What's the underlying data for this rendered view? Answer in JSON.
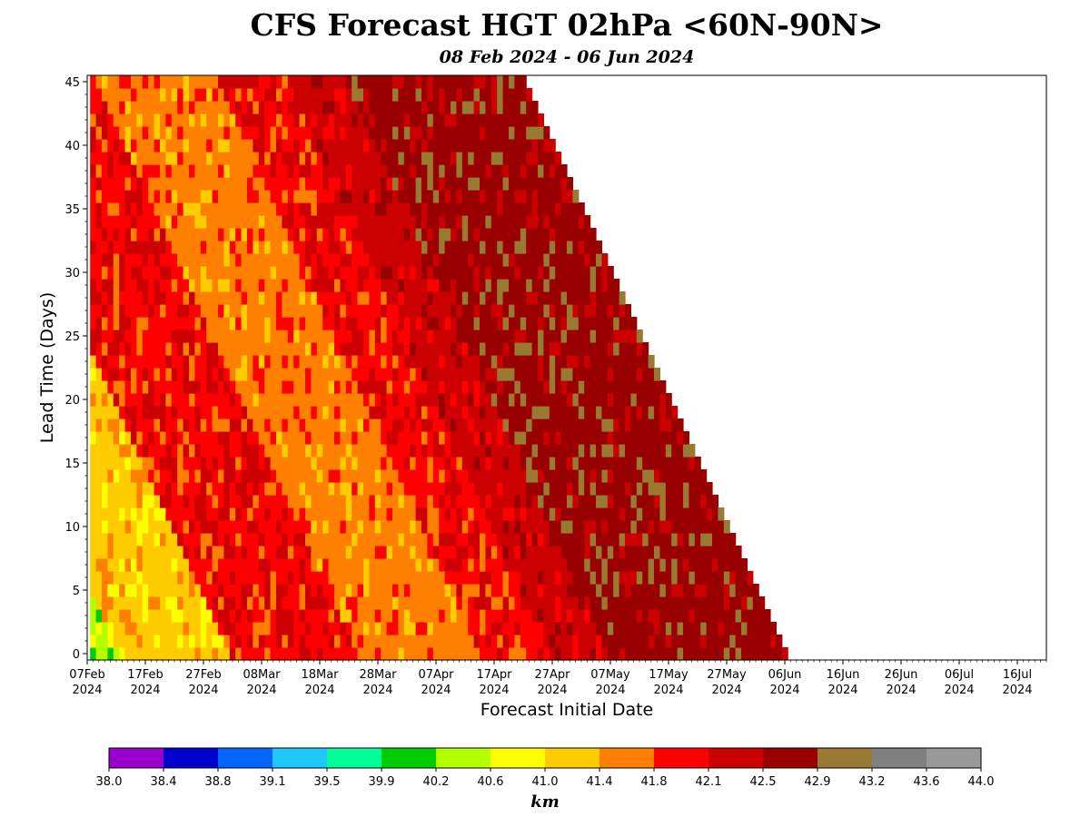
{
  "title": "CFS Forecast HGT 02hPa <60N-90N>",
  "subtitle": "08 Feb 2024 - 06 Jun 2024",
  "chart_data": {
    "type": "heatmap",
    "xlabel": "Forecast Initial Date",
    "ylabel": "Lead Time (Days)",
    "x_ticks": [
      {
        "date": "2024-02-07",
        "line1": "07Feb",
        "line2": "2024"
      },
      {
        "date": "2024-02-17",
        "line1": "17Feb",
        "line2": "2024"
      },
      {
        "date": "2024-02-27",
        "line1": "27Feb",
        "line2": "2024"
      },
      {
        "date": "2024-03-08",
        "line1": "08Mar",
        "line2": "2024"
      },
      {
        "date": "2024-03-18",
        "line1": "18Mar",
        "line2": "2024"
      },
      {
        "date": "2024-03-28",
        "line1": "28Mar",
        "line2": "2024"
      },
      {
        "date": "2024-04-07",
        "line1": "07Apr",
        "line2": "2024"
      },
      {
        "date": "2024-04-17",
        "line1": "17Apr",
        "line2": "2024"
      },
      {
        "date": "2024-04-27",
        "line1": "27Apr",
        "line2": "2024"
      },
      {
        "date": "2024-05-07",
        "line1": "07May",
        "line2": "2024"
      },
      {
        "date": "2024-05-17",
        "line1": "17May",
        "line2": "2024"
      },
      {
        "date": "2024-05-27",
        "line1": "27May",
        "line2": "2024"
      },
      {
        "date": "2024-06-06",
        "line1": "06Jun",
        "line2": "2024"
      },
      {
        "date": "2024-06-16",
        "line1": "16Jun",
        "line2": "2024"
      },
      {
        "date": "2024-06-26",
        "line1": "26Jun",
        "line2": "2024"
      },
      {
        "date": "2024-07-06",
        "line1": "06Jul",
        "line2": "2024"
      },
      {
        "date": "2024-07-16",
        "line1": "16Jul",
        "line2": "2024"
      }
    ],
    "xlim": [
      "2024-02-07",
      "2024-07-21"
    ],
    "y_ticks": [
      0,
      5,
      10,
      15,
      20,
      25,
      30,
      35,
      40,
      45
    ],
    "ylim": [
      -0.5,
      45.5
    ],
    "init_dates": [
      "2024-02-08",
      "2024-06-06"
    ],
    "lead_days": [
      0,
      45
    ],
    "data_regions_km": [
      {
        "init_from": "2024-02-08",
        "init_to": "2024-02-13",
        "value": 40.4
      },
      {
        "init_from": "2024-02-13",
        "init_to": "2024-03-03",
        "value": 41.2
      },
      {
        "init_from": "2024-03-03",
        "init_to": "2024-03-25",
        "value": 42.0
      },
      {
        "init_from": "2024-03-25",
        "init_to": "2024-04-15",
        "value": 41.6
      },
      {
        "init_from": "2024-04-15",
        "init_to": "2024-04-27",
        "value": 42.0
      },
      {
        "init_from": "2024-04-27",
        "init_to": "2024-05-07",
        "value": 42.3
      },
      {
        "init_from": "2024-05-07",
        "init_to": "2024-05-10",
        "value": 42.7
      }
    ],
    "colorbar": {
      "label": "km",
      "ticks": [
        "38.0",
        "38.4",
        "38.8",
        "39.1",
        "39.5",
        "39.9",
        "40.2",
        "40.6",
        "41.0",
        "41.4",
        "41.8",
        "42.1",
        "42.5",
        "42.9",
        "43.2",
        "43.6",
        "44.0"
      ],
      "colors": [
        "#9900cc",
        "#0000cc",
        "#0066ff",
        "#1ec8ff",
        "#00ff99",
        "#00cc00",
        "#b3ff00",
        "#ffff00",
        "#ffcc00",
        "#ff8000",
        "#ff0000",
        "#cc0000",
        "#990000",
        "#997a33",
        "#808080",
        "#999999"
      ]
    }
  }
}
